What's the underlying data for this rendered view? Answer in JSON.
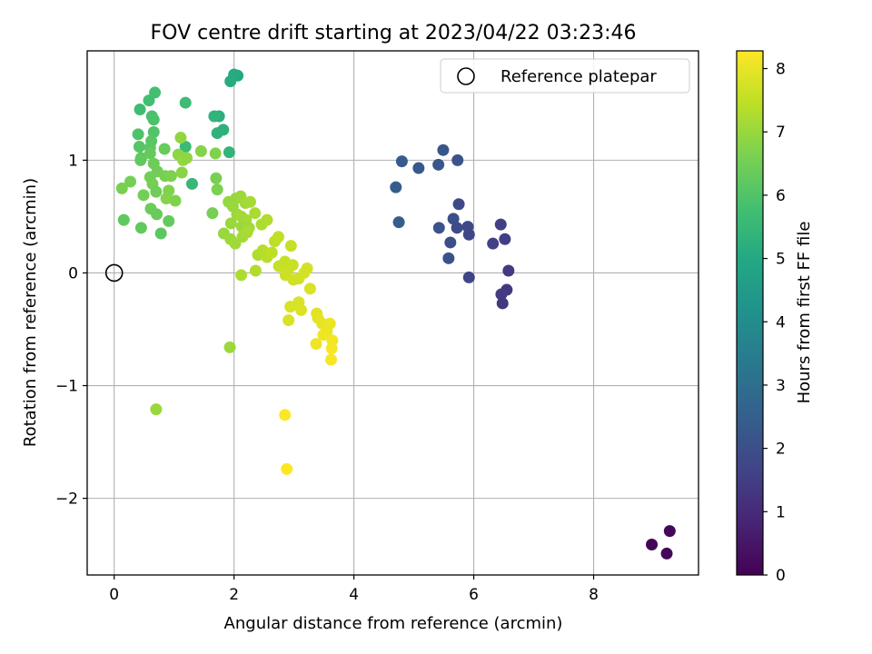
{
  "chart_data": {
    "type": "scatter",
    "title": "FOV centre drift starting at 2023/04/22 03:23:46",
    "xlabel": "Angular distance from reference (arcmin)",
    "ylabel": "Rotation from reference (arcmin)",
    "xlim": [
      -0.45,
      9.75
    ],
    "ylim": [
      -2.68,
      1.97
    ],
    "xticks": [
      0,
      2,
      4,
      6,
      8
    ],
    "xtick_labels": [
      "0",
      "2",
      "4",
      "6",
      "8"
    ],
    "yticks": [
      -2,
      -1,
      0,
      1
    ],
    "ytick_labels": [
      "−2",
      "−1",
      "0",
      "1"
    ],
    "grid": true,
    "colormap": "viridis",
    "colorbar": {
      "label": "Hours from first FF file",
      "range": [
        0,
        8.28
      ],
      "ticks": [
        0,
        1,
        2,
        3,
        4,
        5,
        6,
        7,
        8
      ],
      "tick_labels": [
        "0",
        "1",
        "2",
        "3",
        "4",
        "5",
        "6",
        "7",
        "8"
      ]
    },
    "legend": {
      "placement": "top-right",
      "entries": [
        "Reference platepar"
      ]
    },
    "reference_point": {
      "x": 0,
      "y": 0
    },
    "points": [
      {
        "x": 8.97,
        "y": -2.41,
        "c": 0.1
      },
      {
        "x": 9.27,
        "y": -2.29,
        "c": 0.15
      },
      {
        "x": 9.22,
        "y": -2.49,
        "c": 0.2
      },
      {
        "x": 6.48,
        "y": -0.27,
        "c": 1.3
      },
      {
        "x": 6.55,
        "y": -0.15,
        "c": 1.35
      },
      {
        "x": 6.58,
        "y": 0.02,
        "c": 1.4
      },
      {
        "x": 6.46,
        "y": -0.19,
        "c": 1.45
      },
      {
        "x": 6.52,
        "y": 0.3,
        "c": 1.5
      },
      {
        "x": 6.45,
        "y": 0.43,
        "c": 1.55
      },
      {
        "x": 6.32,
        "y": 0.26,
        "c": 1.6
      },
      {
        "x": 5.92,
        "y": -0.04,
        "c": 1.7
      },
      {
        "x": 5.92,
        "y": 0.34,
        "c": 1.75
      },
      {
        "x": 5.9,
        "y": 0.41,
        "c": 1.8
      },
      {
        "x": 5.75,
        "y": 0.61,
        "c": 1.85
      },
      {
        "x": 5.72,
        "y": 0.4,
        "c": 1.9
      },
      {
        "x": 5.66,
        "y": 0.48,
        "c": 1.95
      },
      {
        "x": 5.61,
        "y": 0.27,
        "c": 2.0
      },
      {
        "x": 5.58,
        "y": 0.13,
        "c": 2.05
      },
      {
        "x": 5.42,
        "y": 0.4,
        "c": 2.1
      },
      {
        "x": 5.73,
        "y": 1.0,
        "c": 2.15
      },
      {
        "x": 5.49,
        "y": 1.09,
        "c": 2.2
      },
      {
        "x": 5.41,
        "y": 0.96,
        "c": 2.25
      },
      {
        "x": 5.08,
        "y": 0.93,
        "c": 2.3
      },
      {
        "x": 4.8,
        "y": 0.99,
        "c": 2.35
      },
      {
        "x": 4.7,
        "y": 0.76,
        "c": 2.4
      },
      {
        "x": 4.75,
        "y": 0.45,
        "c": 2.45
      },
      {
        "x": 2.06,
        "y": 1.75,
        "c": 5.0
      },
      {
        "x": 2.0,
        "y": 1.76,
        "c": 5.05
      },
      {
        "x": 1.94,
        "y": 1.7,
        "c": 5.1
      },
      {
        "x": 1.75,
        "y": 1.39,
        "c": 5.2
      },
      {
        "x": 1.82,
        "y": 1.27,
        "c": 5.25
      },
      {
        "x": 1.72,
        "y": 1.24,
        "c": 5.3
      },
      {
        "x": 1.67,
        "y": 1.39,
        "c": 5.35
      },
      {
        "x": 1.92,
        "y": 1.07,
        "c": 5.4
      },
      {
        "x": 1.3,
        "y": 0.79,
        "c": 5.5
      },
      {
        "x": 1.19,
        "y": 1.12,
        "c": 5.6
      },
      {
        "x": 1.19,
        "y": 1.51,
        "c": 5.65
      },
      {
        "x": 0.43,
        "y": 1.45,
        "c": 5.7
      },
      {
        "x": 0.58,
        "y": 1.53,
        "c": 5.75
      },
      {
        "x": 0.68,
        "y": 1.6,
        "c": 5.8
      },
      {
        "x": 0.63,
        "y": 1.39,
        "c": 5.85
      },
      {
        "x": 0.66,
        "y": 1.36,
        "c": 5.9
      },
      {
        "x": 0.4,
        "y": 1.23,
        "c": 5.95
      },
      {
        "x": 0.66,
        "y": 1.25,
        "c": 6.0
      },
      {
        "x": 0.42,
        "y": 1.12,
        "c": 6.05
      },
      {
        "x": 0.62,
        "y": 1.17,
        "c": 6.1
      },
      {
        "x": 0.6,
        "y": 1.11,
        "c": 6.15
      },
      {
        "x": 0.45,
        "y": 1.02,
        "c": 6.2
      },
      {
        "x": 0.44,
        "y": 1.0,
        "c": 6.25
      },
      {
        "x": 0.6,
        "y": 1.06,
        "c": 6.3
      },
      {
        "x": 0.84,
        "y": 1.1,
        "c": 6.35
      },
      {
        "x": 0.66,
        "y": 0.97,
        "c": 6.4
      },
      {
        "x": 0.72,
        "y": 0.9,
        "c": 6.45
      },
      {
        "x": 0.6,
        "y": 0.85,
        "c": 6.5
      },
      {
        "x": 0.27,
        "y": 0.81,
        "c": 6.55
      },
      {
        "x": 0.13,
        "y": 0.75,
        "c": 6.6
      },
      {
        "x": 0.64,
        "y": 0.79,
        "c": 6.55
      },
      {
        "x": 0.49,
        "y": 0.69,
        "c": 6.5
      },
      {
        "x": 0.7,
        "y": 0.72,
        "c": 6.45
      },
      {
        "x": 0.61,
        "y": 0.57,
        "c": 6.4
      },
      {
        "x": 0.71,
        "y": 0.52,
        "c": 6.35
      },
      {
        "x": 0.91,
        "y": 0.46,
        "c": 6.3
      },
      {
        "x": 0.45,
        "y": 0.4,
        "c": 6.25
      },
      {
        "x": 0.16,
        "y": 0.47,
        "c": 6.2
      },
      {
        "x": 0.78,
        "y": 0.35,
        "c": 6.15
      },
      {
        "x": 0.85,
        "y": 0.86,
        "c": 6.6
      },
      {
        "x": 0.95,
        "y": 0.86,
        "c": 6.65
      },
      {
        "x": 0.91,
        "y": 0.73,
        "c": 6.7
      },
      {
        "x": 0.87,
        "y": 0.66,
        "c": 6.75
      },
      {
        "x": 1.02,
        "y": 0.64,
        "c": 6.7
      },
      {
        "x": 1.07,
        "y": 1.05,
        "c": 6.85
      },
      {
        "x": 1.11,
        "y": 1.2,
        "c": 6.9
      },
      {
        "x": 1.15,
        "y": 1.0,
        "c": 6.95
      },
      {
        "x": 1.21,
        "y": 1.02,
        "c": 6.9
      },
      {
        "x": 1.13,
        "y": 0.89,
        "c": 6.8
      },
      {
        "x": 1.45,
        "y": 1.08,
        "c": 6.75
      },
      {
        "x": 1.64,
        "y": 0.53,
        "c": 6.55
      },
      {
        "x": 1.7,
        "y": 0.84,
        "c": 6.6
      },
      {
        "x": 1.72,
        "y": 0.74,
        "c": 6.65
      },
      {
        "x": 1.69,
        "y": 1.06,
        "c": 6.7
      },
      {
        "x": 0.7,
        "y": -1.21,
        "c": 7.0
      },
      {
        "x": 1.93,
        "y": -0.66,
        "c": 7.05
      },
      {
        "x": 1.91,
        "y": 0.63,
        "c": 6.95
      },
      {
        "x": 2.03,
        "y": 0.66,
        "c": 7.0
      },
      {
        "x": 2.11,
        "y": 0.68,
        "c": 7.05
      },
      {
        "x": 2.19,
        "y": 0.62,
        "c": 7.1
      },
      {
        "x": 2.27,
        "y": 0.63,
        "c": 7.15
      },
      {
        "x": 1.98,
        "y": 0.59,
        "c": 7.0
      },
      {
        "x": 2.05,
        "y": 0.52,
        "c": 7.05
      },
      {
        "x": 2.12,
        "y": 0.5,
        "c": 7.1
      },
      {
        "x": 2.2,
        "y": 0.47,
        "c": 7.15
      },
      {
        "x": 1.95,
        "y": 0.44,
        "c": 7.0
      },
      {
        "x": 2.13,
        "y": 0.41,
        "c": 7.05
      },
      {
        "x": 2.25,
        "y": 0.4,
        "c": 7.1
      },
      {
        "x": 1.83,
        "y": 0.35,
        "c": 7.0
      },
      {
        "x": 1.94,
        "y": 0.3,
        "c": 7.05
      },
      {
        "x": 2.02,
        "y": 0.26,
        "c": 7.1
      },
      {
        "x": 2.14,
        "y": 0.32,
        "c": 7.15
      },
      {
        "x": 2.22,
        "y": 0.36,
        "c": 7.2
      },
      {
        "x": 2.35,
        "y": 0.53,
        "c": 7.2
      },
      {
        "x": 2.46,
        "y": 0.43,
        "c": 7.25
      },
      {
        "x": 2.55,
        "y": 0.47,
        "c": 7.3
      },
      {
        "x": 2.4,
        "y": 0.16,
        "c": 7.3
      },
      {
        "x": 2.48,
        "y": 0.2,
        "c": 7.35
      },
      {
        "x": 2.55,
        "y": 0.14,
        "c": 7.4
      },
      {
        "x": 2.63,
        "y": 0.18,
        "c": 7.45
      },
      {
        "x": 2.68,
        "y": 0.28,
        "c": 7.45
      },
      {
        "x": 2.74,
        "y": 0.32,
        "c": 7.5
      },
      {
        "x": 2.36,
        "y": 0.02,
        "c": 7.3
      },
      {
        "x": 2.12,
        "y": -0.02,
        "c": 7.25
      },
      {
        "x": 2.85,
        "y": 0.1,
        "c": 7.55
      },
      {
        "x": 2.75,
        "y": 0.06,
        "c": 7.55
      },
      {
        "x": 2.9,
        "y": 0.03,
        "c": 7.6
      },
      {
        "x": 2.98,
        "y": 0.07,
        "c": 7.6
      },
      {
        "x": 2.86,
        "y": -0.02,
        "c": 7.65
      },
      {
        "x": 2.95,
        "y": 0.24,
        "c": 7.55
      },
      {
        "x": 2.99,
        "y": -0.06,
        "c": 7.7
      },
      {
        "x": 3.08,
        "y": -0.05,
        "c": 7.7
      },
      {
        "x": 3.17,
        "y": 0.0,
        "c": 7.75
      },
      {
        "x": 3.22,
        "y": 0.04,
        "c": 7.75
      },
      {
        "x": 3.27,
        "y": -0.14,
        "c": 7.8
      },
      {
        "x": 3.08,
        "y": -0.26,
        "c": 7.8
      },
      {
        "x": 3.12,
        "y": -0.33,
        "c": 7.85
      },
      {
        "x": 2.94,
        "y": -0.3,
        "c": 7.8
      },
      {
        "x": 2.91,
        "y": -0.42,
        "c": 7.8
      },
      {
        "x": 3.38,
        "y": -0.36,
        "c": 7.9
      },
      {
        "x": 3.4,
        "y": -0.4,
        "c": 7.95
      },
      {
        "x": 3.47,
        "y": -0.45,
        "c": 8.0
      },
      {
        "x": 3.6,
        "y": -0.45,
        "c": 8.05
      },
      {
        "x": 3.55,
        "y": -0.52,
        "c": 8.05
      },
      {
        "x": 3.49,
        "y": -0.55,
        "c": 8.1
      },
      {
        "x": 3.37,
        "y": -0.63,
        "c": 8.1
      },
      {
        "x": 3.64,
        "y": -0.6,
        "c": 8.15
      },
      {
        "x": 3.63,
        "y": -0.67,
        "c": 8.2
      },
      {
        "x": 3.62,
        "y": -0.77,
        "c": 8.2
      },
      {
        "x": 2.85,
        "y": -1.26,
        "c": 8.25
      },
      {
        "x": 2.88,
        "y": -1.74,
        "c": 8.28
      }
    ]
  }
}
